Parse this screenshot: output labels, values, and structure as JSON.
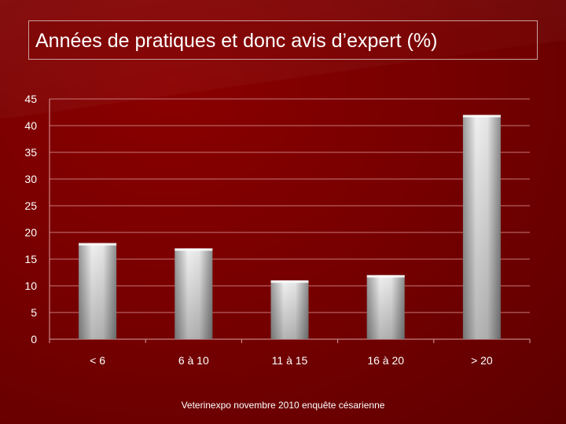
{
  "title": "Années de pratiques et donc avis d’expert (%)",
  "footer": "Veterinexpo novembre 2010 enquête césarienne",
  "colors": {
    "background": "#780000",
    "bar_light": "#f2f2f2",
    "bar_dark": "#8c8c8c",
    "gridline": "#c87878",
    "text": "#ffffff"
  },
  "chart_data": {
    "type": "bar",
    "categories": [
      "< 6",
      "6 à 10",
      "11 à 15",
      "16 à 20",
      "> 20"
    ],
    "values": [
      18,
      17,
      11,
      12,
      42
    ],
    "title": "Années de pratiques et donc avis d’expert (%)",
    "xlabel": "",
    "ylabel": "",
    "ylim": [
      0,
      45
    ],
    "yticks": [
      0,
      5,
      10,
      15,
      20,
      25,
      30,
      35,
      40,
      45
    ],
    "grid": true,
    "legend": "none"
  }
}
